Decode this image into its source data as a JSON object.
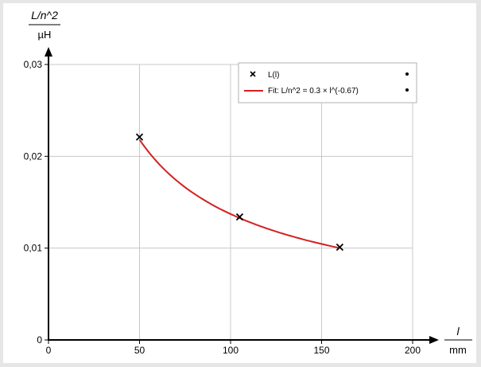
{
  "chart_data": {
    "type": "scatter",
    "x_axis": {
      "label": "l",
      "unit": "mm",
      "lim": [
        0,
        200
      ],
      "ticks": [
        0,
        50,
        100,
        150,
        200
      ],
      "tick_labels": [
        "0",
        "50",
        "100",
        "150",
        "200"
      ]
    },
    "y_axis": {
      "label": "L/n^2",
      "unit": "µH",
      "lim": [
        0,
        0.03
      ],
      "ticks": [
        0,
        0.01,
        0.02,
        0.03
      ],
      "tick_labels": [
        "0",
        "0,01",
        "0,02",
        "0,03"
      ]
    },
    "grid": true,
    "legend_position": "top-right",
    "series": [
      {
        "name": "L(l)",
        "kind": "points",
        "marker": "x",
        "color": "#000000",
        "x": [
          50,
          105,
          160
        ],
        "y": [
          0.0221,
          0.0134,
          0.0101
        ]
      },
      {
        "name": "Fit: L/n^2 = 0.3 × l^(-0.67)",
        "kind": "fit",
        "color": "#d42020",
        "formula": {
          "a": 0.3,
          "b": -0.67
        },
        "x_range": [
          50,
          160
        ]
      }
    ]
  }
}
